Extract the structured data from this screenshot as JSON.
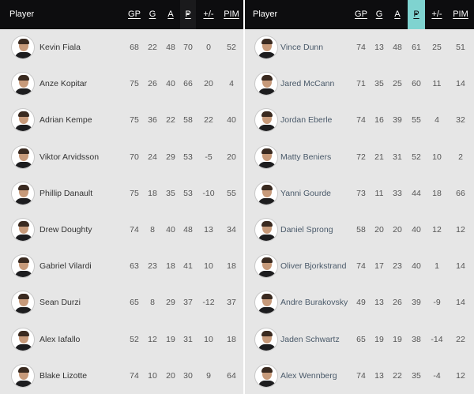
{
  "left_table": {
    "headers": {
      "player": "Player",
      "gp": "GP",
      "g": "G",
      "a": "A",
      "p": "P",
      "pm": "+/-",
      "pim": "PIM"
    },
    "rows": [
      {
        "name": "Kevin Fiala",
        "gp": "68",
        "g": "22",
        "a": "48",
        "p": "70",
        "pm": "0",
        "pim": "52"
      },
      {
        "name": "Anze Kopitar",
        "gp": "75",
        "g": "26",
        "a": "40",
        "p": "66",
        "pm": "20",
        "pim": "4"
      },
      {
        "name": "Adrian Kempe",
        "gp": "75",
        "g": "36",
        "a": "22",
        "p": "58",
        "pm": "22",
        "pim": "40"
      },
      {
        "name": "Viktor Arvidsson",
        "gp": "70",
        "g": "24",
        "a": "29",
        "p": "53",
        "pm": "-5",
        "pim": "20"
      },
      {
        "name": "Phillip Danault",
        "gp": "75",
        "g": "18",
        "a": "35",
        "p": "53",
        "pm": "-10",
        "pim": "55"
      },
      {
        "name": "Drew Doughty",
        "gp": "74",
        "g": "8",
        "a": "40",
        "p": "48",
        "pm": "13",
        "pim": "34"
      },
      {
        "name": "Gabriel Vilardi",
        "gp": "63",
        "g": "23",
        "a": "18",
        "p": "41",
        "pm": "10",
        "pim": "18"
      },
      {
        "name": "Sean Durzi",
        "gp": "65",
        "g": "8",
        "a": "29",
        "p": "37",
        "pm": "-12",
        "pim": "37"
      },
      {
        "name": "Alex Iafallo",
        "gp": "52",
        "g": "12",
        "a": "19",
        "p": "31",
        "pm": "10",
        "pim": "18"
      },
      {
        "name": "Blake Lizotte",
        "gp": "74",
        "g": "10",
        "a": "20",
        "p": "30",
        "pm": "9",
        "pim": "64"
      }
    ]
  },
  "right_table": {
    "headers": {
      "player": "Player",
      "gp": "GP",
      "g": "G",
      "a": "A",
      "p": "P",
      "pm": "+/-",
      "pim": "PIM"
    },
    "rows": [
      {
        "name": "Vince Dunn",
        "gp": "74",
        "g": "13",
        "a": "48",
        "p": "61",
        "pm": "25",
        "pim": "51"
      },
      {
        "name": "Jared McCann",
        "gp": "71",
        "g": "35",
        "a": "25",
        "p": "60",
        "pm": "11",
        "pim": "14"
      },
      {
        "name": "Jordan Eberle",
        "gp": "74",
        "g": "16",
        "a": "39",
        "p": "55",
        "pm": "4",
        "pim": "32"
      },
      {
        "name": "Matty Beniers",
        "gp": "72",
        "g": "21",
        "a": "31",
        "p": "52",
        "pm": "10",
        "pim": "2"
      },
      {
        "name": "Yanni Gourde",
        "gp": "73",
        "g": "11",
        "a": "33",
        "p": "44",
        "pm": "18",
        "pim": "66"
      },
      {
        "name": "Daniel Sprong",
        "gp": "58",
        "g": "20",
        "a": "20",
        "p": "40",
        "pm": "12",
        "pim": "12"
      },
      {
        "name": "Oliver Bjorkstrand",
        "gp": "74",
        "g": "17",
        "a": "23",
        "p": "40",
        "pm": "1",
        "pim": "14"
      },
      {
        "name": "Andre Burakovsky",
        "gp": "49",
        "g": "13",
        "a": "26",
        "p": "39",
        "pm": "-9",
        "pim": "14"
      },
      {
        "name": "Jaden Schwartz",
        "gp": "65",
        "g": "19",
        "a": "19",
        "p": "38",
        "pm": "-14",
        "pim": "22"
      },
      {
        "name": "Alex Wennberg",
        "gp": "74",
        "g": "13",
        "a": "22",
        "p": "35",
        "pm": "-4",
        "pim": "12"
      }
    ]
  },
  "colors": {
    "header_bg": "#0d0d0f",
    "row_bg": "#e6e6e6",
    "left_sort_column": "#d2d2d2",
    "right_sort_accent": "#7fd3d0"
  },
  "icons": {
    "avatar": "player-headshot",
    "sort": "sort-arrow-up-icon"
  }
}
